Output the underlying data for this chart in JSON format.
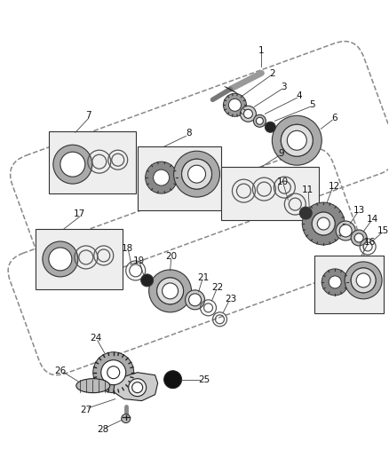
{
  "bg_color": "#ffffff",
  "line_color": "#222222",
  "gray_dark": "#555555",
  "gray_mid": "#888888",
  "gray_light": "#bbbbbb",
  "gray_lighter": "#dddddd",
  "part_numbers": [
    1,
    2,
    3,
    4,
    5,
    6,
    7,
    8,
    9,
    10,
    11,
    12,
    13,
    14,
    15,
    16,
    17,
    18,
    19,
    20,
    21,
    22,
    23,
    24,
    25,
    26,
    27,
    28
  ]
}
